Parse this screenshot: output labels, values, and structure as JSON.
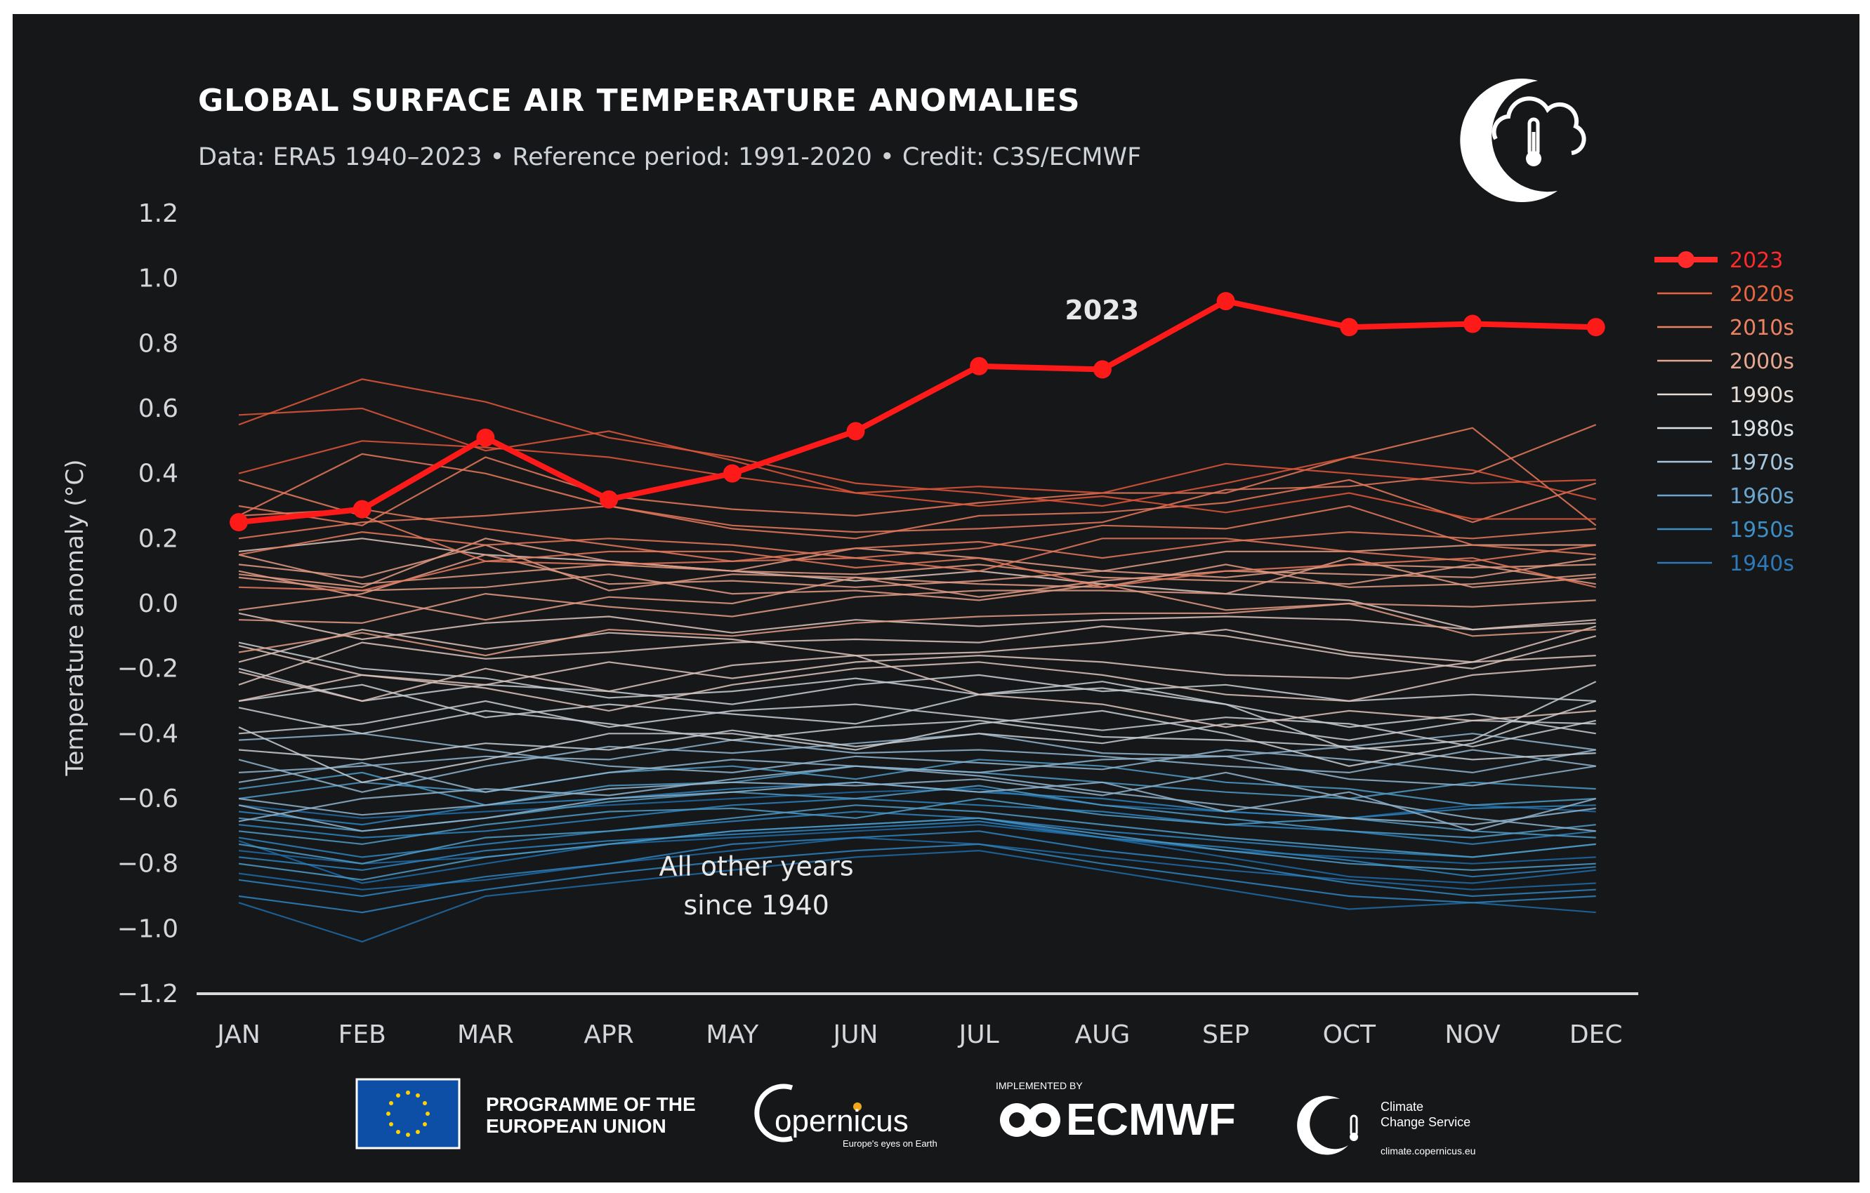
{
  "chart_data": {
    "type": "line",
    "title": "GLOBAL SURFACE AIR TEMPERATURE ANOMALIES",
    "subtitle": "Data: ERA5 1940–2023 • Reference period: 1991-2020 • Credit: C3S/ECMWF",
    "xlabel": "",
    "ylabel": "Temperature anomaly (°C)",
    "categories": [
      "JAN",
      "FEB",
      "MAR",
      "APR",
      "MAY",
      "JUN",
      "JUL",
      "AUG",
      "SEP",
      "OCT",
      "NOV",
      "DEC"
    ],
    "ylim": [
      -1.2,
      1.2
    ],
    "yticks": [
      "1.2",
      "1.0",
      "0.8",
      "0.6",
      "0.4",
      "0.2",
      "0.0",
      "−0.2",
      "−0.4",
      "−0.6",
      "−0.8",
      "−1.0",
      "−1.2"
    ],
    "highlight": {
      "name": "2023",
      "label": "2023",
      "color": "#ff1a1a",
      "values": [
        0.25,
        0.29,
        0.51,
        0.32,
        0.4,
        0.53,
        0.73,
        0.72,
        0.93,
        0.85,
        0.86,
        0.85
      ]
    },
    "decades": [
      {
        "name": "2020s",
        "color": "#e2573a",
        "years": [
          [
            0.58,
            0.6,
            0.47,
            0.53,
            0.44,
            0.34,
            0.36,
            0.34,
            0.43,
            0.4,
            0.37,
            0.38
          ],
          [
            0.55,
            0.69,
            0.62,
            0.51,
            0.45,
            0.37,
            0.34,
            0.3,
            0.37,
            0.45,
            0.41,
            0.32
          ],
          [
            0.4,
            0.5,
            0.48,
            0.45,
            0.39,
            0.34,
            0.3,
            0.33,
            0.28,
            0.34,
            0.26,
            0.26
          ]
        ]
      },
      {
        "name": "2010s",
        "color": "#e8795c",
        "years": [
          [
            0.27,
            0.29,
            0.23,
            0.18,
            0.13,
            0.17,
            0.19,
            0.14,
            0.19,
            0.22,
            0.2,
            0.23
          ],
          [
            0.38,
            0.27,
            0.13,
            0.12,
            0.13,
            0.14,
            0.1,
            0.2,
            0.2,
            0.16,
            0.13,
            0.18
          ],
          [
            0.27,
            0.46,
            0.4,
            0.3,
            0.23,
            0.2,
            0.27,
            0.28,
            0.31,
            0.38,
            0.25,
            0.37
          ],
          [
            0.3,
            0.24,
            0.45,
            0.33,
            0.29,
            0.27,
            0.31,
            0.34,
            0.34,
            0.45,
            0.54,
            0.24
          ],
          [
            0.2,
            0.25,
            0.27,
            0.3,
            0.24,
            0.22,
            0.23,
            0.25,
            0.35,
            0.36,
            0.4,
            0.55
          ],
          [
            0.15,
            0.22,
            0.18,
            0.2,
            0.18,
            0.14,
            0.17,
            0.24,
            0.23,
            0.3,
            0.18,
            0.15
          ],
          [
            0.05,
            0.04,
            0.13,
            0.16,
            0.16,
            0.11,
            0.14,
            0.05,
            0.1,
            0.12,
            0.14,
            0.05
          ]
        ]
      },
      {
        "name": "2000s",
        "color": "#e29b85",
        "years": [
          [
            0.12,
            0.08,
            0.18,
            0.04,
            0.09,
            0.08,
            0.06,
            0.05,
            0.12,
            0.05,
            0.06,
            0.09
          ],
          [
            -0.02,
            0.03,
            0.15,
            0.06,
            0.07,
            0.05,
            0.07,
            0.1,
            0.08,
            0.12,
            0.11,
            0.12
          ],
          [
            0.15,
            0.06,
            0.09,
            0.12,
            0.1,
            0.09,
            0.12,
            0.08,
            0.07,
            0.06,
            0.12,
            0.06
          ],
          [
            0.09,
            0.05,
            0.2,
            0.13,
            0.1,
            0.17,
            0.14,
            0.1,
            0.16,
            0.16,
            0.18,
            0.18
          ],
          [
            0.08,
            0.04,
            0.05,
            0.09,
            0.03,
            0.04,
            0.01,
            0.06,
            -0.02,
            0.0,
            -0.01,
            0.01
          ],
          [
            -0.05,
            -0.06,
            0.03,
            -0.01,
            -0.04,
            0.02,
            0.04,
            0.04,
            0.03,
            0.14,
            0.05,
            0.08
          ],
          [
            -0.15,
            -0.09,
            -0.16,
            -0.08,
            -0.1,
            -0.06,
            -0.04,
            -0.03,
            -0.03,
            0.0,
            -0.1,
            -0.08
          ],
          [
            0.1,
            0.02,
            -0.05,
            0.02,
            0.0,
            0.08,
            0.02,
            0.07,
            0.1,
            0.09,
            0.08,
            0.14
          ]
        ]
      },
      {
        "name": "1990s",
        "color": "#dcc3bb",
        "years": [
          [
            -0.25,
            -0.12,
            -0.17,
            -0.15,
            -0.12,
            -0.11,
            -0.12,
            -0.07,
            -0.1,
            -0.16,
            -0.2,
            -0.1
          ],
          [
            -0.21,
            -0.3,
            -0.2,
            -0.27,
            -0.19,
            -0.16,
            -0.28,
            -0.31,
            -0.38,
            -0.33,
            -0.36,
            -0.33
          ],
          [
            -0.13,
            -0.22,
            -0.25,
            -0.18,
            -0.23,
            -0.18,
            -0.16,
            -0.18,
            -0.22,
            -0.23,
            -0.18,
            -0.16
          ],
          [
            -0.18,
            -0.08,
            -0.14,
            -0.09,
            -0.11,
            -0.16,
            -0.15,
            -0.12,
            -0.08,
            -0.15,
            -0.18,
            -0.07
          ],
          [
            -0.03,
            -0.11,
            -0.06,
            -0.04,
            -0.09,
            -0.05,
            -0.07,
            -0.05,
            -0.04,
            -0.05,
            -0.08,
            -0.05
          ],
          [
            0.16,
            0.2,
            0.15,
            0.13,
            0.1,
            0.07,
            0.1,
            0.06,
            0.03,
            0.01,
            -0.08,
            -0.06
          ],
          [
            -0.3,
            -0.22,
            -0.26,
            -0.33,
            -0.25,
            -0.2,
            -0.18,
            -0.22,
            -0.28,
            -0.3,
            -0.22,
            -0.19
          ]
        ]
      },
      {
        "name": "1980s",
        "color": "#c7cdd2",
        "years": [
          [
            -0.3,
            -0.25,
            -0.35,
            -0.31,
            -0.34,
            -0.37,
            -0.28,
            -0.26,
            -0.31,
            -0.45,
            -0.42,
            -0.24
          ],
          [
            -0.4,
            -0.37,
            -0.3,
            -0.38,
            -0.33,
            -0.31,
            -0.35,
            -0.39,
            -0.35,
            -0.37,
            -0.44,
            -0.36
          ],
          [
            -0.12,
            -0.2,
            -0.23,
            -0.29,
            -0.27,
            -0.23,
            -0.28,
            -0.24,
            -0.31,
            -0.38,
            -0.34,
            -0.4
          ],
          [
            -0.32,
            -0.4,
            -0.33,
            -0.37,
            -0.42,
            -0.38,
            -0.36,
            -0.41,
            -0.42,
            -0.44,
            -0.48,
            -0.46
          ],
          [
            -0.45,
            -0.48,
            -0.43,
            -0.45,
            -0.39,
            -0.44,
            -0.4,
            -0.43,
            -0.37,
            -0.42,
            -0.36,
            -0.37
          ],
          [
            -0.2,
            -0.3,
            -0.25,
            -0.27,
            -0.31,
            -0.25,
            -0.22,
            -0.27,
            -0.25,
            -0.3,
            -0.28,
            -0.3
          ],
          [
            -0.38,
            -0.55,
            -0.48,
            -0.4,
            -0.4,
            -0.45,
            -0.37,
            -0.33,
            -0.4,
            -0.5,
            -0.43,
            -0.3
          ]
        ]
      },
      {
        "name": "1970s",
        "color": "#8fb3cc",
        "years": [
          [
            -0.55,
            -0.49,
            -0.58,
            -0.52,
            -0.48,
            -0.5,
            -0.52,
            -0.48,
            -0.47,
            -0.54,
            -0.56,
            -0.5
          ],
          [
            -0.6,
            -0.65,
            -0.62,
            -0.57,
            -0.55,
            -0.56,
            -0.54,
            -0.59,
            -0.52,
            -0.6,
            -0.66,
            -0.7
          ],
          [
            -0.48,
            -0.58,
            -0.5,
            -0.44,
            -0.46,
            -0.43,
            -0.4,
            -0.46,
            -0.47,
            -0.44,
            -0.4,
            -0.45
          ],
          [
            -0.67,
            -0.6,
            -0.57,
            -0.59,
            -0.54,
            -0.5,
            -0.53,
            -0.58,
            -0.62,
            -0.66,
            -0.68,
            -0.63
          ],
          [
            -0.52,
            -0.5,
            -0.47,
            -0.48,
            -0.42,
            -0.46,
            -0.45,
            -0.47,
            -0.5,
            -0.52,
            -0.45,
            -0.5
          ],
          [
            -0.62,
            -0.7,
            -0.66,
            -0.6,
            -0.58,
            -0.55,
            -0.58,
            -0.55,
            -0.64,
            -0.58,
            -0.7,
            -0.6
          ],
          [
            -0.42,
            -0.4,
            -0.45,
            -0.5,
            -0.52,
            -0.47,
            -0.49,
            -0.51,
            -0.45,
            -0.48,
            -0.52,
            -0.45
          ]
        ]
      },
      {
        "name": "1960s",
        "color": "#4f9ac4",
        "years": [
          [
            -0.57,
            -0.52,
            -0.62,
            -0.56,
            -0.55,
            -0.5,
            -0.52,
            -0.55,
            -0.58,
            -0.6,
            -0.55,
            -0.57
          ],
          [
            -0.66,
            -0.7,
            -0.66,
            -0.61,
            -0.58,
            -0.6,
            -0.56,
            -0.62,
            -0.66,
            -0.7,
            -0.72,
            -0.68
          ],
          [
            -0.74,
            -0.8,
            -0.72,
            -0.7,
            -0.66,
            -0.62,
            -0.64,
            -0.68,
            -0.72,
            -0.75,
            -0.78,
            -0.74
          ],
          [
            -0.6,
            -0.55,
            -0.58,
            -0.52,
            -0.5,
            -0.54,
            -0.48,
            -0.5,
            -0.55,
            -0.57,
            -0.62,
            -0.6
          ],
          [
            -0.7,
            -0.74,
            -0.68,
            -0.64,
            -0.63,
            -0.66,
            -0.6,
            -0.65,
            -0.68,
            -0.66,
            -0.7,
            -0.72
          ],
          [
            -0.8,
            -0.85,
            -0.78,
            -0.74,
            -0.7,
            -0.68,
            -0.66,
            -0.71,
            -0.76,
            -0.8,
            -0.82,
            -0.8
          ]
        ]
      },
      {
        "name": "1950s",
        "color": "#2f82bd",
        "years": [
          [
            -0.72,
            -0.78,
            -0.74,
            -0.7,
            -0.67,
            -0.64,
            -0.66,
            -0.7,
            -0.73,
            -0.76,
            -0.78,
            -0.74
          ],
          [
            -0.85,
            -0.9,
            -0.84,
            -0.8,
            -0.74,
            -0.72,
            -0.7,
            -0.76,
            -0.8,
            -0.86,
            -0.9,
            -0.88
          ],
          [
            -0.64,
            -0.68,
            -0.62,
            -0.6,
            -0.57,
            -0.55,
            -0.58,
            -0.6,
            -0.64,
            -0.66,
            -0.63,
            -0.62
          ],
          [
            -0.78,
            -0.82,
            -0.76,
            -0.73,
            -0.71,
            -0.69,
            -0.67,
            -0.72,
            -0.75,
            -0.79,
            -0.84,
            -0.81
          ],
          [
            -0.9,
            -0.95,
            -0.88,
            -0.83,
            -0.79,
            -0.76,
            -0.74,
            -0.8,
            -0.85,
            -0.9,
            -0.92,
            -0.9
          ],
          [
            -0.68,
            -0.72,
            -0.7,
            -0.66,
            -0.62,
            -0.6,
            -0.62,
            -0.64,
            -0.68,
            -0.7,
            -0.74,
            -0.7
          ]
        ]
      },
      {
        "name": "1940s",
        "color": "#1f6aa6",
        "years": [
          [
            -0.73,
            -0.86,
            -0.8,
            -0.74,
            -0.7,
            -0.68,
            -0.66,
            -0.72,
            -0.78,
            -0.84,
            -0.86,
            -0.82
          ],
          [
            -0.92,
            -1.04,
            -0.9,
            -0.86,
            -0.82,
            -0.78,
            -0.76,
            -0.82,
            -0.88,
            -0.94,
            -0.92,
            -0.95
          ],
          [
            -0.83,
            -0.88,
            -0.85,
            -0.8,
            -0.76,
            -0.72,
            -0.74,
            -0.78,
            -0.82,
            -0.85,
            -0.88,
            -0.86
          ],
          [
            -0.62,
            -0.66,
            -0.64,
            -0.62,
            -0.6,
            -0.58,
            -0.57,
            -0.62,
            -0.64,
            -0.66,
            -0.62,
            -0.64
          ],
          [
            -0.76,
            -0.8,
            -0.78,
            -0.74,
            -0.72,
            -0.7,
            -0.68,
            -0.72,
            -0.76,
            -0.78,
            -0.8,
            -0.78
          ]
        ]
      }
    ],
    "annotations": [
      {
        "text": "2023",
        "x": "JUL",
        "y": 0.9
      },
      {
        "text": "All other years",
        "x": "APR",
        "y": -0.81
      },
      {
        "text": "since 1940",
        "x": "APR",
        "y": -0.93
      }
    ],
    "legend": {
      "position": "right",
      "items": [
        {
          "label": "2023",
          "color": "#ff2a2a"
        },
        {
          "label": "2020s",
          "color": "#e8663f"
        },
        {
          "label": "2010s",
          "color": "#ec8262"
        },
        {
          "label": "2000s",
          "color": "#e8a791"
        },
        {
          "label": "1990s",
          "color": "#e6dcd6"
        },
        {
          "label": "1980s",
          "color": "#dde2e6"
        },
        {
          "label": "1970s",
          "color": "#a9c7dc"
        },
        {
          "label": "1960s",
          "color": "#6aa6cf"
        },
        {
          "label": "1950s",
          "color": "#3e8fc8"
        },
        {
          "label": "1940s",
          "color": "#2e79b8"
        }
      ]
    }
  },
  "footer": {
    "eu_text_line1": "PROGRAMME OF THE",
    "eu_text_line2": "EUROPEAN UNION",
    "copernicus_text": "opernicus",
    "copernicus_tagline": "Europe's eyes on Earth",
    "ecmwf_implemented": "IMPLEMENTED BY",
    "ecmwf_text": "ECMWF",
    "c3s_line1": "Climate",
    "c3s_line2": "Change Service",
    "c3s_url": "climate.copernicus.eu"
  }
}
